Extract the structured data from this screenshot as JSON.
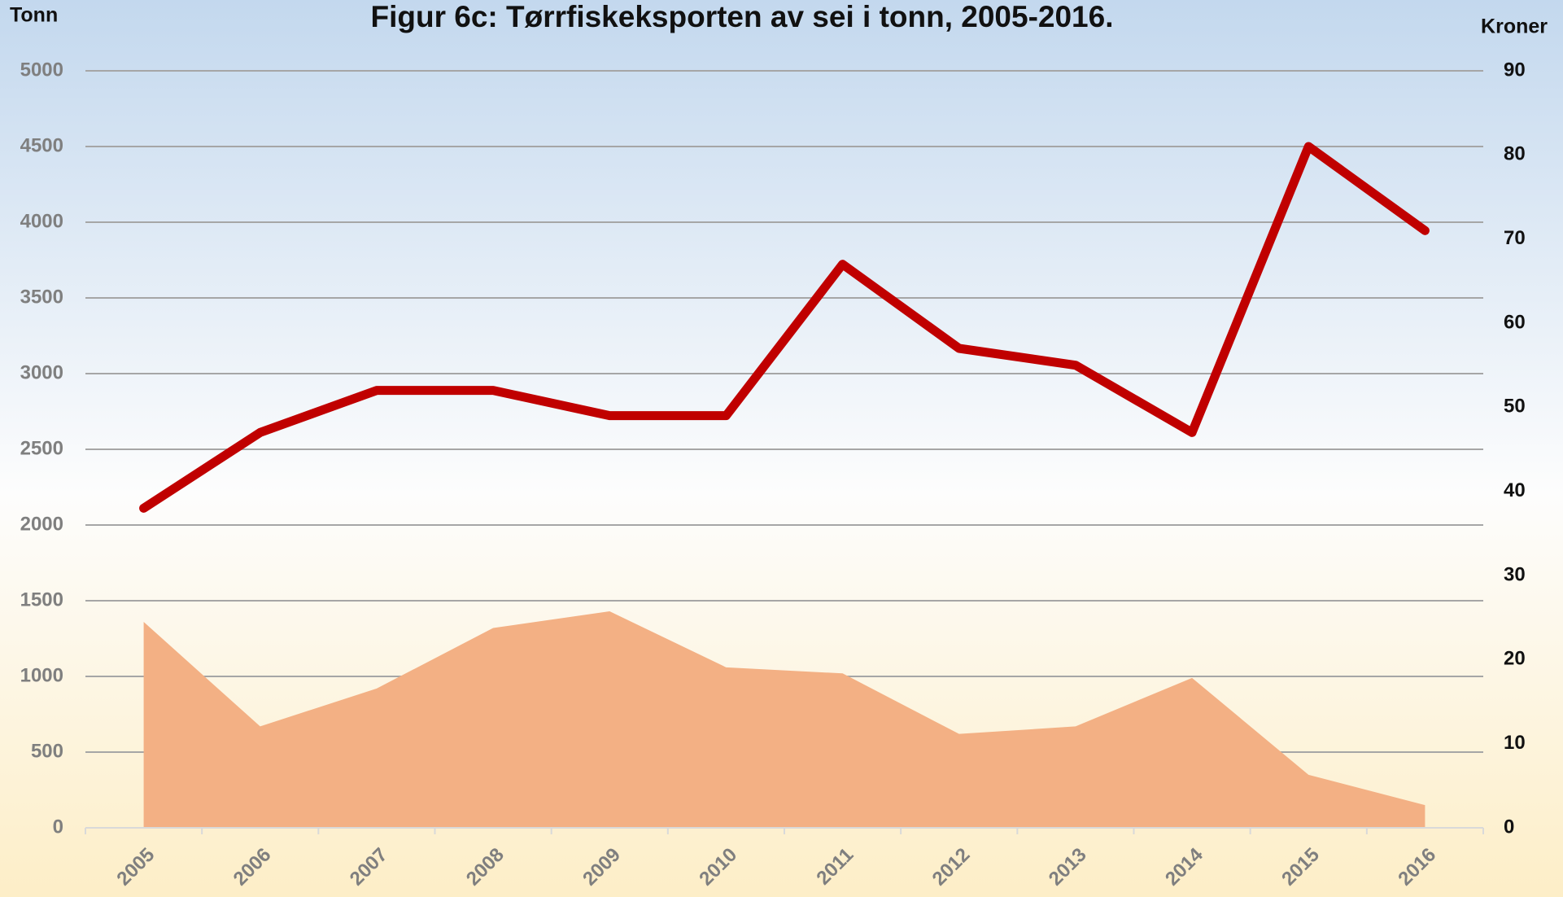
{
  "chart_data": {
    "type": "line",
    "title": "Figur 6c: Tørrfiskeksporten av sei i tonn, 2005-2016.",
    "y_label": "Tonn",
    "y2_label": "Kroner",
    "categories": [
      "2005",
      "2006",
      "2007",
      "2008",
      "2009",
      "2010",
      "2011",
      "2012",
      "2013",
      "2014",
      "2015",
      "2016"
    ],
    "series": [
      {
        "type": "area",
        "color": "#f3b084",
        "values": [
          1360,
          670,
          920,
          1320,
          1430,
          1060,
          1020,
          620,
          670,
          990,
          350,
          150
        ]
      },
      {
        "type": "line",
        "color": "#c00000",
        "axis": "y2",
        "values": [
          38,
          47,
          52,
          52,
          49,
          49,
          67,
          57,
          55,
          47,
          81,
          71
        ]
      }
    ],
    "ylim": [
      0,
      5000
    ],
    "yticks": [
      0,
      500,
      1000,
      1500,
      2000,
      2500,
      3000,
      3500,
      4000,
      4500,
      5000
    ],
    "y2lim": [
      0,
      90
    ],
    "y2ticks": [
      0,
      10,
      20,
      30,
      40,
      50,
      60,
      70,
      80,
      90
    ],
    "grid": true
  }
}
